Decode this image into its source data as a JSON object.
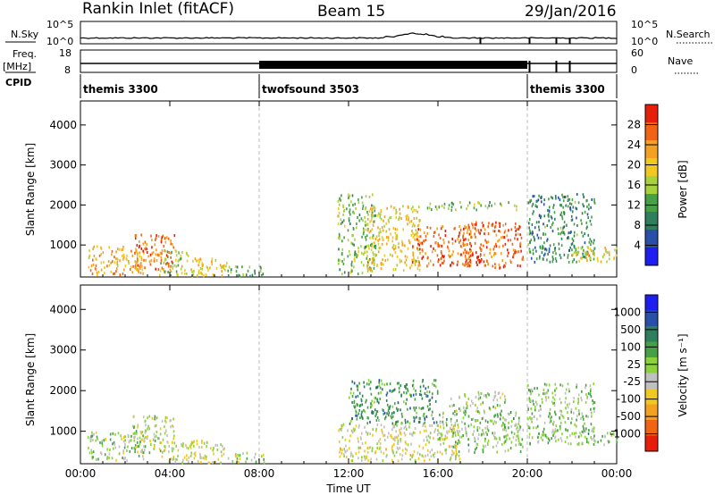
{
  "header": {
    "station": "Rankin Inlet (fitACF)",
    "beam": "Beam 15",
    "date": "29/Jan/2016"
  },
  "status_panel": {
    "nsky_label": "N.Sky",
    "nsky_ticks": [
      "10^5",
      "10^0"
    ],
    "nsearch_label": "N.Search",
    "nsearch_ticks": [
      "10^5",
      "10^0"
    ],
    "freq_label": "Freq.",
    "freq_unit": "[MHz]",
    "freq_ticks": [
      "18",
      "8"
    ],
    "nave_label": "Nave",
    "nave_ticks": [
      "60",
      "0"
    ],
    "cpid_label": "CPID",
    "cpid_segments": [
      {
        "name": "themis 3300",
        "start_h": 0,
        "end_h": 8
      },
      {
        "name": "twofsound 3503",
        "start_h": 8,
        "end_h": 20
      },
      {
        "name": "themis 3300",
        "start_h": 20,
        "end_h": 24
      }
    ]
  },
  "chart_data": [
    {
      "type": "heatmap",
      "panel": "power",
      "xlabel": "",
      "ylabel": "Slant Range [km]",
      "xlim": [
        0,
        24
      ],
      "ylim": [
        200,
        4600
      ],
      "yticks": [
        1000,
        2000,
        3000,
        4000
      ],
      "colorbar": {
        "label": "Power [dB]",
        "range": [
          0,
          32
        ],
        "ticks": [
          4,
          8,
          12,
          16,
          20,
          24,
          28
        ],
        "colors": [
          "#1e1ef0",
          "#2a4fa8",
          "#2f7f5e",
          "#46a046",
          "#a8d23c",
          "#f0c820",
          "#f4a020",
          "#f06414",
          "#e61e0a"
        ]
      },
      "regions": [
        {
          "t0": 0.3,
          "t1": 3.0,
          "r0": 280,
          "r1": 1000,
          "value": 22
        },
        {
          "t0": 2.4,
          "t1": 4.2,
          "r0": 400,
          "r1": 1300,
          "value": 26
        },
        {
          "t0": 3.5,
          "t1": 4.8,
          "r0": 250,
          "r1": 900,
          "value": 16
        },
        {
          "t0": 4.5,
          "t1": 6.6,
          "r0": 250,
          "r1": 700,
          "value": 20
        },
        {
          "t0": 6.5,
          "t1": 8.2,
          "r0": 250,
          "r1": 500,
          "value": 12
        },
        {
          "t0": 11.5,
          "t1": 13.2,
          "r0": 300,
          "r1": 2300,
          "value": 14
        },
        {
          "t0": 12.8,
          "t1": 15.2,
          "r0": 400,
          "r1": 2000,
          "value": 20
        },
        {
          "t0": 14.8,
          "t1": 17.5,
          "r0": 500,
          "r1": 1500,
          "value": 26
        },
        {
          "t0": 17.2,
          "t1": 19.8,
          "r0": 450,
          "r1": 1600,
          "value": 27
        },
        {
          "t0": 15.5,
          "t1": 19.5,
          "r0": 1900,
          "r1": 2100,
          "value": 14
        },
        {
          "t0": 20.0,
          "t1": 23.0,
          "r0": 600,
          "r1": 2300,
          "value": 10
        },
        {
          "t0": 22.0,
          "t1": 24.0,
          "r0": 600,
          "r1": 1000,
          "value": 20
        }
      ]
    },
    {
      "type": "heatmap",
      "panel": "velocity",
      "xlabel": "Time UT",
      "ylabel": "Slant Range [km]",
      "xlim": [
        0,
        24
      ],
      "ylim": [
        200,
        4600
      ],
      "xticks": [
        "00:00",
        "04:00",
        "08:00",
        "12:00",
        "16:00",
        "20:00",
        "00:00"
      ],
      "yticks": [
        1000,
        2000,
        3000,
        4000
      ],
      "colorbar": {
        "label": "Velocity [m s⁻¹]",
        "range": [
          -1500,
          1500
        ],
        "ticks": [
          1000,
          500,
          100,
          25,
          -25,
          -100,
          -500,
          -1000
        ],
        "colors": [
          "#e61e0a",
          "#f06414",
          "#f4a020",
          "#f0c820",
          "#c0c0c0",
          "#8cd23c",
          "#46a046",
          "#2f7f5e",
          "#2a4fa8",
          "#1e1ef0"
        ]
      },
      "regions": [
        {
          "t0": 0.3,
          "t1": 3.0,
          "r0": 300,
          "r1": 1000,
          "value": 60
        },
        {
          "t0": 2.3,
          "t1": 4.2,
          "r0": 500,
          "r1": 1400,
          "value": 0
        },
        {
          "t0": 3.5,
          "t1": 6.6,
          "r0": 250,
          "r1": 800,
          "value": -150
        },
        {
          "t0": 6.5,
          "t1": 8.2,
          "r0": 250,
          "r1": 500,
          "value": -60
        },
        {
          "t0": 11.5,
          "t1": 17.0,
          "r0": 300,
          "r1": 1200,
          "value": -200
        },
        {
          "t0": 12.0,
          "t1": 16.0,
          "r0": 1200,
          "r1": 2300,
          "value": 600
        },
        {
          "t0": 16.0,
          "t1": 19.8,
          "r0": 500,
          "r1": 1500,
          "value": 200
        },
        {
          "t0": 16.5,
          "t1": 19.0,
          "r0": 1500,
          "r1": 2000,
          "value": 0
        },
        {
          "t0": 20.0,
          "t1": 23.0,
          "r0": 700,
          "r1": 2200,
          "value": 150
        },
        {
          "t0": 22.5,
          "t1": 24.0,
          "r0": 700,
          "r1": 1000,
          "value": 200
        }
      ]
    }
  ]
}
